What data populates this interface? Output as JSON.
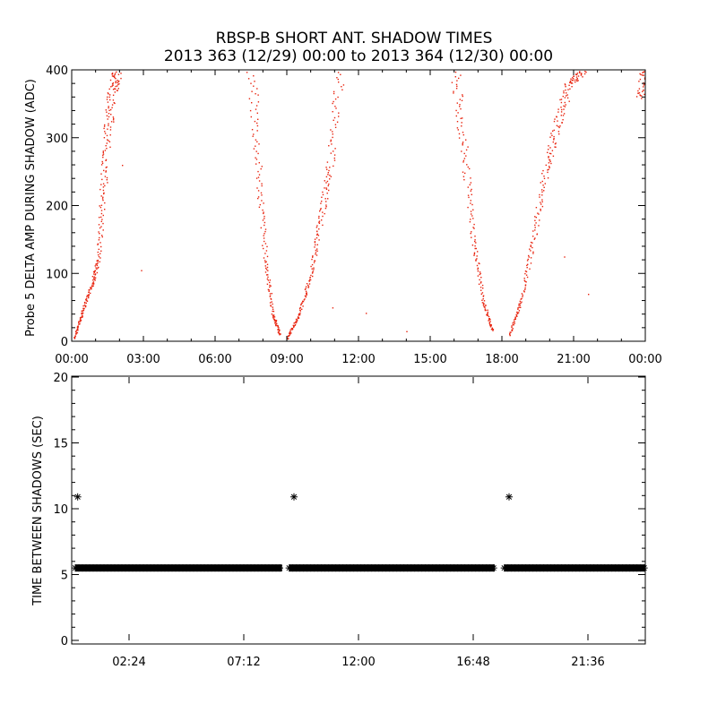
{
  "figure": {
    "title_line1": "RBSP-B SHORT ANT. SHADOW TIMES",
    "title_line2": "2013 363 (12/29) 00:00 to 2013 364 (12/30) 00:00"
  },
  "chart_data": [
    {
      "type": "scatter",
      "panel": "top",
      "ylabel": "Probe 5 DELTA AMP DURING SHADOW (ADC)",
      "xlabel": "",
      "xlim": [
        "00:00",
        "24:00"
      ],
      "ylim": [
        0,
        400
      ],
      "x_unit": "hours",
      "x_tick_labels": [
        "00:00",
        "03:00",
        "06:00",
        "09:00",
        "12:00",
        "15:00",
        "18:00",
        "21:00",
        "00:00"
      ],
      "y_tick_labels": [
        "0",
        "100",
        "200",
        "300",
        "400"
      ],
      "marker_color": "#e8230e",
      "branches": [
        {
          "x": [
            0.1,
            0.4,
            0.8,
            1.1,
            1.3,
            1.5,
            1.7,
            1.9
          ],
          "y": [
            5,
            40,
            80,
            120,
            220,
            310,
            370,
            400
          ]
        },
        {
          "x": [
            7.5,
            7.8,
            8.1,
            8.4,
            8.7
          ],
          "y": [
            400,
            250,
            120,
            40,
            10
          ]
        },
        {
          "x": [
            9.0,
            9.5,
            10.0,
            10.4,
            10.8,
            11.2
          ],
          "y": [
            5,
            40,
            100,
            180,
            260,
            400
          ]
        },
        {
          "x": [
            16.0,
            16.4,
            16.8,
            17.2,
            17.6
          ],
          "y": [
            400,
            280,
            150,
            60,
            15
          ]
        },
        {
          "x": [
            18.3,
            18.8,
            19.3,
            19.8,
            20.3,
            20.8,
            21.4
          ],
          "y": [
            10,
            60,
            150,
            250,
            320,
            380,
            400
          ]
        },
        {
          "x": [
            23.8,
            24.0
          ],
          "y": [
            360,
            400
          ]
        }
      ],
      "outliers": [
        {
          "x": 2.1,
          "y": 260
        },
        {
          "x": 2.9,
          "y": 105
        },
        {
          "x": 10.9,
          "y": 50
        },
        {
          "x": 12.3,
          "y": 42
        },
        {
          "x": 14.0,
          "y": 15
        },
        {
          "x": 20.6,
          "y": 125
        },
        {
          "x": 21.6,
          "y": 70
        }
      ]
    },
    {
      "type": "scatter",
      "panel": "bottom",
      "ylabel": "TIME BETWEEN SHADOWS (SEC)",
      "xlabel": "",
      "xlim": [
        "00:00",
        "24:00"
      ],
      "ylim": [
        0,
        20
      ],
      "x_unit": "hours",
      "x_tick_labels": [
        "02:24",
        "07:12",
        "12:00",
        "16:48",
        "21:36"
      ],
      "x_tick_values": [
        2.4,
        7.2,
        12.0,
        16.8,
        21.6
      ],
      "y_tick_labels": [
        "0",
        "5",
        "10",
        "15",
        "20"
      ],
      "marker": "asterisk",
      "marker_color": "#000000",
      "baseline_value": 5.5,
      "baseline_segments": [
        [
          0.15,
          8.8
        ],
        [
          9.1,
          17.7
        ],
        [
          18.1,
          24.0
        ]
      ],
      "highlights": [
        {
          "x": 0.25,
          "y": 10.9
        },
        {
          "x": 9.3,
          "y": 10.9
        },
        {
          "x": 18.3,
          "y": 10.9
        }
      ]
    }
  ]
}
